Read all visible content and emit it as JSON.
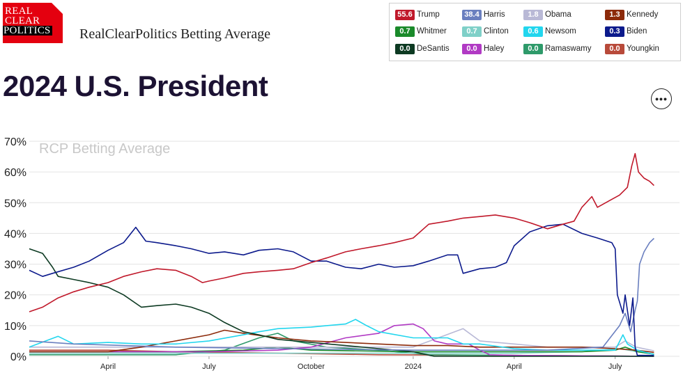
{
  "header": {
    "logo_lines": [
      "REAL",
      "CLEAR",
      "POLITICS"
    ],
    "subtitle": "RealClearPolitics Betting Average",
    "title": "2024 U.S. President",
    "more_label": "•••"
  },
  "legend": [
    {
      "value": "55.6",
      "name": "Trump",
      "color": "#c0182a"
    },
    {
      "value": "38.4",
      "name": "Harris",
      "color": "#6a7fbf"
    },
    {
      "value": "1.8",
      "name": "Obama",
      "color": "#b9b9d6"
    },
    {
      "value": "1.3",
      "name": "Kennedy",
      "color": "#8c2a0a"
    },
    {
      "value": "0.7",
      "name": "Whitmer",
      "color": "#1a8a2a"
    },
    {
      "value": "0.7",
      "name": "Clinton",
      "color": "#7fd0c8"
    },
    {
      "value": "0.6",
      "name": "Newsom",
      "color": "#22d6ee"
    },
    {
      "value": "0.3",
      "name": "Biden",
      "color": "#0c1a8c"
    },
    {
      "value": "0.0",
      "name": "DeSantis",
      "color": "#0d3a22"
    },
    {
      "value": "0.0",
      "name": "Haley",
      "color": "#b13ac4"
    },
    {
      "value": "0.0",
      "name": "Ramaswamy",
      "color": "#2e9a6a"
    },
    {
      "value": "0.0",
      "name": "Youngkin",
      "color": "#b84a3a"
    }
  ],
  "chart_data": {
    "type": "line",
    "watermark": "RCP Betting Average",
    "ylim": [
      0,
      70
    ],
    "yticks": [
      "0%",
      "10%",
      "20%",
      "30%",
      "40%",
      "50%",
      "60%",
      "70%"
    ],
    "xlim": [
      "2023-01-20",
      "2024-08-28"
    ],
    "xtick_labels": [
      {
        "date": "2023-04-01",
        "label": "April"
      },
      {
        "date": "2023-07-01",
        "label": "July"
      },
      {
        "date": "2023-10-01",
        "label": "October"
      },
      {
        "date": "2024-01-01",
        "label": "2024"
      },
      {
        "date": "2024-04-01",
        "label": "April"
      },
      {
        "date": "2024-07-01",
        "label": "July"
      }
    ],
    "grid": true,
    "series": [
      {
        "name": "Trump",
        "color": "#c0182a",
        "points": [
          [
            "2023-01-20",
            14.5
          ],
          [
            "2023-02-01",
            16
          ],
          [
            "2023-02-15",
            19
          ],
          [
            "2023-03-01",
            21
          ],
          [
            "2023-03-15",
            22.5
          ],
          [
            "2023-04-01",
            24
          ],
          [
            "2023-04-15",
            26
          ],
          [
            "2023-05-01",
            27.5
          ],
          [
            "2023-05-15",
            28.5
          ],
          [
            "2023-06-01",
            28
          ],
          [
            "2023-06-15",
            26
          ],
          [
            "2023-06-25",
            24
          ],
          [
            "2023-07-01",
            24.5
          ],
          [
            "2023-07-15",
            25.5
          ],
          [
            "2023-08-01",
            27
          ],
          [
            "2023-08-15",
            27.5
          ],
          [
            "2023-09-01",
            28
          ],
          [
            "2023-09-15",
            28.5
          ],
          [
            "2023-10-01",
            30.5
          ],
          [
            "2023-10-15",
            32
          ],
          [
            "2023-11-01",
            34
          ],
          [
            "2023-11-15",
            35
          ],
          [
            "2023-12-01",
            36
          ],
          [
            "2023-12-15",
            37
          ],
          [
            "2024-01-01",
            38.5
          ],
          [
            "2024-01-15",
            43
          ],
          [
            "2024-02-01",
            44
          ],
          [
            "2024-02-15",
            45
          ],
          [
            "2024-03-01",
            45.5
          ],
          [
            "2024-03-15",
            46
          ],
          [
            "2024-04-01",
            45
          ],
          [
            "2024-04-15",
            43.5
          ],
          [
            "2024-05-01",
            41.5
          ],
          [
            "2024-05-15",
            43
          ],
          [
            "2024-05-25",
            44
          ],
          [
            "2024-06-01",
            48.5
          ],
          [
            "2024-06-10",
            52
          ],
          [
            "2024-06-15",
            48.5
          ],
          [
            "2024-06-25",
            50.5
          ],
          [
            "2024-07-05",
            52.5
          ],
          [
            "2024-07-12",
            55
          ],
          [
            "2024-07-16",
            62
          ],
          [
            "2024-07-19",
            66
          ],
          [
            "2024-07-22",
            60
          ],
          [
            "2024-07-27",
            58
          ],
          [
            "2024-08-01",
            57
          ],
          [
            "2024-08-05",
            55.6
          ]
        ]
      },
      {
        "name": "Biden",
        "color": "#0c1a8c",
        "points": [
          [
            "2023-01-20",
            28
          ],
          [
            "2023-02-01",
            26
          ],
          [
            "2023-02-10",
            27
          ],
          [
            "2023-03-01",
            29
          ],
          [
            "2023-03-15",
            31
          ],
          [
            "2023-04-01",
            34.5
          ],
          [
            "2023-04-15",
            37
          ],
          [
            "2023-04-26",
            42
          ],
          [
            "2023-05-05",
            37.5
          ],
          [
            "2023-05-15",
            37
          ],
          [
            "2023-06-01",
            36
          ],
          [
            "2023-06-15",
            35
          ],
          [
            "2023-07-01",
            33.5
          ],
          [
            "2023-07-15",
            34
          ],
          [
            "2023-08-01",
            33
          ],
          [
            "2023-08-15",
            34.5
          ],
          [
            "2023-09-01",
            35
          ],
          [
            "2023-09-15",
            34
          ],
          [
            "2023-10-01",
            31
          ],
          [
            "2023-10-15",
            31
          ],
          [
            "2023-11-01",
            29
          ],
          [
            "2023-11-15",
            28.5
          ],
          [
            "2023-12-01",
            30
          ],
          [
            "2023-12-15",
            29
          ],
          [
            "2024-01-01",
            29.5
          ],
          [
            "2024-01-15",
            31
          ],
          [
            "2024-02-01",
            33
          ],
          [
            "2024-02-10",
            33
          ],
          [
            "2024-02-15",
            27
          ],
          [
            "2024-03-01",
            28.5
          ],
          [
            "2024-03-15",
            29
          ],
          [
            "2024-03-25",
            30.5
          ],
          [
            "2024-04-01",
            36
          ],
          [
            "2024-04-15",
            40.5
          ],
          [
            "2024-05-01",
            42.5
          ],
          [
            "2024-05-15",
            43
          ],
          [
            "2024-06-01",
            40
          ],
          [
            "2024-06-15",
            38.5
          ],
          [
            "2024-06-28",
            37
          ],
          [
            "2024-07-01",
            35
          ],
          [
            "2024-07-03",
            20
          ],
          [
            "2024-07-08",
            14
          ],
          [
            "2024-07-10",
            20
          ],
          [
            "2024-07-14",
            10
          ],
          [
            "2024-07-17",
            19
          ],
          [
            "2024-07-19",
            3
          ],
          [
            "2024-07-21",
            0.3
          ],
          [
            "2024-08-05",
            0.3
          ]
        ]
      },
      {
        "name": "Harris",
        "color": "#6a7fbf",
        "points": [
          [
            "2023-01-20",
            5
          ],
          [
            "2023-03-01",
            4
          ],
          [
            "2023-06-01",
            3
          ],
          [
            "2023-09-01",
            2.5
          ],
          [
            "2024-01-01",
            2
          ],
          [
            "2024-05-01",
            2
          ],
          [
            "2024-06-20",
            3
          ],
          [
            "2024-07-05",
            10
          ],
          [
            "2024-07-10",
            14
          ],
          [
            "2024-07-15",
            8
          ],
          [
            "2024-07-19",
            15
          ],
          [
            "2024-07-21",
            18
          ],
          [
            "2024-07-23",
            30
          ],
          [
            "2024-07-27",
            34
          ],
          [
            "2024-08-01",
            37
          ],
          [
            "2024-08-05",
            38.4
          ]
        ]
      },
      {
        "name": "DeSantis",
        "color": "#0d3a22",
        "points": [
          [
            "2023-01-20",
            35
          ],
          [
            "2023-02-01",
            33.5
          ],
          [
            "2023-02-10",
            29
          ],
          [
            "2023-02-15",
            26
          ],
          [
            "2023-03-01",
            25
          ],
          [
            "2023-03-15",
            24
          ],
          [
            "2023-04-01",
            22.5
          ],
          [
            "2023-04-15",
            20
          ],
          [
            "2023-05-01",
            16
          ],
          [
            "2023-05-15",
            16.5
          ],
          [
            "2023-06-01",
            17
          ],
          [
            "2023-06-15",
            16
          ],
          [
            "2023-07-01",
            14
          ],
          [
            "2023-07-15",
            11
          ],
          [
            "2023-08-01",
            8
          ],
          [
            "2023-08-15",
            7
          ],
          [
            "2023-09-01",
            5.5
          ],
          [
            "2023-10-01",
            4.5
          ],
          [
            "2023-11-01",
            3.5
          ],
          [
            "2023-12-01",
            2.5
          ],
          [
            "2024-01-01",
            1.5
          ],
          [
            "2024-01-20",
            0
          ],
          [
            "2024-08-05",
            0
          ]
        ]
      },
      {
        "name": "Newsom",
        "color": "#22d6ee",
        "points": [
          [
            "2023-01-20",
            3
          ],
          [
            "2023-02-15",
            6.5
          ],
          [
            "2023-03-01",
            4
          ],
          [
            "2023-04-01",
            4.5
          ],
          [
            "2023-05-01",
            4
          ],
          [
            "2023-06-01",
            4
          ],
          [
            "2023-07-01",
            5
          ],
          [
            "2023-08-01",
            7
          ],
          [
            "2023-08-15",
            8
          ],
          [
            "2023-09-01",
            9
          ],
          [
            "2023-10-01",
            9.5
          ],
          [
            "2023-10-15",
            10
          ],
          [
            "2023-11-01",
            10.5
          ],
          [
            "2023-11-10",
            12
          ],
          [
            "2023-11-20",
            10
          ],
          [
            "2023-12-01",
            8
          ],
          [
            "2024-01-01",
            6
          ],
          [
            "2024-02-01",
            6
          ],
          [
            "2024-02-15",
            4
          ],
          [
            "2024-03-01",
            4
          ],
          [
            "2024-04-01",
            2.5
          ],
          [
            "2024-05-01",
            2
          ],
          [
            "2024-06-01",
            2
          ],
          [
            "2024-07-01",
            2
          ],
          [
            "2024-07-08",
            7
          ],
          [
            "2024-07-12",
            4
          ],
          [
            "2024-07-21",
            2
          ],
          [
            "2024-08-05",
            0.6
          ]
        ]
      },
      {
        "name": "Kennedy",
        "color": "#8c2a0a",
        "points": [
          [
            "2023-01-20",
            1.5
          ],
          [
            "2023-04-01",
            1.5
          ],
          [
            "2023-05-01",
            3
          ],
          [
            "2023-06-01",
            5
          ],
          [
            "2023-07-01",
            7
          ],
          [
            "2023-07-15",
            8.5
          ],
          [
            "2023-08-01",
            7.5
          ],
          [
            "2023-09-01",
            6
          ],
          [
            "2023-10-01",
            5
          ],
          [
            "2023-11-01",
            4.5
          ],
          [
            "2023-12-01",
            4
          ],
          [
            "2024-01-01",
            3.5
          ],
          [
            "2024-02-01",
            3.5
          ],
          [
            "2024-03-01",
            3
          ],
          [
            "2024-04-01",
            3
          ],
          [
            "2024-05-01",
            3
          ],
          [
            "2024-06-01",
            3
          ],
          [
            "2024-07-01",
            2.5
          ],
          [
            "2024-07-20",
            2
          ],
          [
            "2024-08-05",
            1.3
          ]
        ]
      },
      {
        "name": "Haley",
        "color": "#b13ac4",
        "points": [
          [
            "2023-01-20",
            1.5
          ],
          [
            "2023-04-01",
            1.5
          ],
          [
            "2023-07-01",
            1.5
          ],
          [
            "2023-09-01",
            2
          ],
          [
            "2023-10-01",
            3
          ],
          [
            "2023-11-01",
            6
          ],
          [
            "2023-12-01",
            7.5
          ],
          [
            "2023-12-15",
            10
          ],
          [
            "2024-01-01",
            10.5
          ],
          [
            "2024-01-10",
            9
          ],
          [
            "2024-01-20",
            5
          ],
          [
            "2024-02-01",
            4
          ],
          [
            "2024-02-20",
            4
          ],
          [
            "2024-03-01",
            2
          ],
          [
            "2024-03-10",
            0.5
          ],
          [
            "2024-04-01",
            0.3
          ],
          [
            "2024-08-05",
            0
          ]
        ]
      },
      {
        "name": "Obama",
        "color": "#b9b9d6",
        "points": [
          [
            "2023-01-20",
            3
          ],
          [
            "2023-04-01",
            3
          ],
          [
            "2023-07-01",
            3
          ],
          [
            "2023-10-01",
            3
          ],
          [
            "2024-01-01",
            3
          ],
          [
            "2024-02-15",
            9
          ],
          [
            "2024-03-01",
            5
          ],
          [
            "2024-04-01",
            4
          ],
          [
            "2024-05-01",
            3
          ],
          [
            "2024-06-01",
            3
          ],
          [
            "2024-07-01",
            3
          ],
          [
            "2024-07-10",
            5
          ],
          [
            "2024-07-20",
            3
          ],
          [
            "2024-08-05",
            1.8
          ]
        ]
      },
      {
        "name": "Whitmer",
        "color": "#1a8a2a",
        "points": [
          [
            "2023-01-20",
            1.5
          ],
          [
            "2023-06-01",
            1.5
          ],
          [
            "2023-08-01",
            2
          ],
          [
            "2023-09-01",
            3
          ],
          [
            "2023-10-01",
            2
          ],
          [
            "2024-01-01",
            1.5
          ],
          [
            "2024-04-01",
            1.5
          ],
          [
            "2024-06-01",
            1.5
          ],
          [
            "2024-07-01",
            2
          ],
          [
            "2024-07-10",
            3
          ],
          [
            "2024-07-21",
            1.5
          ],
          [
            "2024-08-05",
            0.7
          ]
        ]
      },
      {
        "name": "Clinton",
        "color": "#7fd0c8",
        "points": [
          [
            "2023-01-20",
            1
          ],
          [
            "2023-06-01",
            1
          ],
          [
            "2024-01-01",
            1
          ],
          [
            "2024-04-01",
            1
          ],
          [
            "2024-06-01",
            1.5
          ],
          [
            "2024-07-05",
            2.5
          ],
          [
            "2024-07-21",
            1.5
          ],
          [
            "2024-08-05",
            0.7
          ]
        ]
      },
      {
        "name": "Ramaswamy",
        "color": "#2e9a6a",
        "points": [
          [
            "2023-01-20",
            0.5
          ],
          [
            "2023-06-01",
            0.5
          ],
          [
            "2023-07-15",
            2
          ],
          [
            "2023-08-15",
            6
          ],
          [
            "2023-09-01",
            7.5
          ],
          [
            "2023-09-15",
            5
          ],
          [
            "2023-10-15",
            3
          ],
          [
            "2023-12-01",
            2
          ],
          [
            "2024-01-15",
            0.5
          ],
          [
            "2024-08-05",
            0
          ]
        ]
      },
      {
        "name": "Youngkin",
        "color": "#b84a3a",
        "points": [
          [
            "2023-01-20",
            2
          ],
          [
            "2023-04-01",
            2
          ],
          [
            "2023-06-01",
            1.5
          ],
          [
            "2023-09-01",
            1
          ],
          [
            "2023-12-01",
            0.5
          ],
          [
            "2024-04-01",
            0.3
          ],
          [
            "2024-08-05",
            0
          ]
        ]
      }
    ]
  }
}
